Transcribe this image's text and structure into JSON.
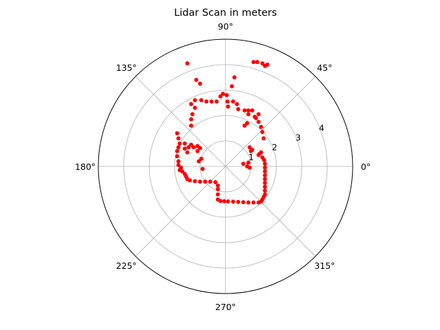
{
  "chart_data": {
    "type": "scatter",
    "projection": "polar",
    "title": "Lidar Scan in meters",
    "rlim": [
      0,
      5
    ],
    "r_ticks": [
      "1",
      "2",
      "3",
      "4"
    ],
    "theta_ticks": [
      "0°",
      "45°",
      "90°",
      "135°",
      "180°",
      "225°",
      "270°",
      "315°"
    ],
    "grid": true,
    "marker_color": "#ff0000",
    "series": [
      {
        "points_xy_m": [
          [
            1.4,
            0.55
          ],
          [
            1.35,
            0.5
          ],
          [
            1.3,
            0.45
          ],
          [
            1.05,
            0.65
          ],
          [
            0.95,
            0.75
          ],
          [
            1.0,
            0.6
          ],
          [
            1.45,
            0.35
          ],
          [
            1.52,
            0.25
          ],
          [
            1.55,
            0.1
          ],
          [
            1.55,
            -0.05
          ],
          [
            1.55,
            -0.2
          ],
          [
            1.55,
            -0.35
          ],
          [
            1.55,
            -0.5
          ],
          [
            1.55,
            -0.65
          ],
          [
            1.55,
            -0.8
          ],
          [
            1.55,
            -0.95
          ],
          [
            1.55,
            -1.1
          ],
          [
            1.5,
            -1.2
          ],
          [
            1.45,
            -1.3
          ],
          [
            1.4,
            -1.38
          ],
          [
            1.3,
            -1.42
          ],
          [
            1.1,
            -1.42
          ],
          [
            0.9,
            -1.42
          ],
          [
            0.7,
            -1.41
          ],
          [
            0.5,
            -1.4
          ],
          [
            0.3,
            -1.39
          ],
          [
            0.1,
            -1.38
          ],
          [
            -0.05,
            -1.37
          ],
          [
            -0.2,
            -1.36
          ],
          [
            -0.3,
            -1.3
          ],
          [
            -0.3,
            -1.1
          ],
          [
            -0.3,
            -0.9
          ],
          [
            -0.3,
            -0.75
          ],
          [
            -0.4,
            -0.62
          ],
          [
            -0.6,
            -0.6
          ],
          [
            -0.8,
            -0.6
          ],
          [
            -1.0,
            -0.6
          ],
          [
            -1.2,
            -0.58
          ],
          [
            -1.4,
            -0.55
          ],
          [
            -1.5,
            -0.5
          ],
          [
            -1.55,
            -0.4
          ],
          [
            -1.6,
            -0.3
          ],
          [
            -1.7,
            -0.2
          ],
          [
            -1.8,
            -0.15
          ],
          [
            -1.75,
            -0.05
          ],
          [
            -1.85,
            0.05
          ],
          [
            -1.85,
            0.2
          ],
          [
            -1.9,
            0.4
          ],
          [
            -1.9,
            0.6
          ],
          [
            -1.85,
            0.75
          ],
          [
            -1.8,
            0.9
          ],
          [
            -1.85,
            1.1
          ],
          [
            -1.9,
            1.3
          ],
          [
            -1.6,
            0.9
          ],
          [
            -1.6,
            0.7
          ],
          [
            -1.5,
            0.55
          ],
          [
            -1.45,
            0.75
          ],
          [
            -1.35,
            0.85
          ],
          [
            -0.95,
            0.3
          ],
          [
            -1.0,
            0.72
          ],
          [
            -1.1,
            0.8
          ],
          [
            -1.35,
            1.6
          ],
          [
            -1.35,
            1.85
          ],
          [
            -1.3,
            2.05
          ],
          [
            -1.2,
            2.3
          ],
          [
            -1.35,
            2.45
          ],
          [
            -1.2,
            2.6
          ],
          [
            -0.95,
            2.6
          ],
          [
            -0.75,
            2.55
          ],
          [
            -0.55,
            2.55
          ],
          [
            -0.35,
            2.55
          ],
          [
            -0.2,
            2.75
          ],
          [
            -0.1,
            2.85
          ],
          [
            0.05,
            2.8
          ],
          [
            0.08,
            2.55
          ],
          [
            0.1,
            2.35
          ],
          [
            0.3,
            2.55
          ],
          [
            0.45,
            2.45
          ],
          [
            0.5,
            2.25
          ],
          [
            0.75,
            2.2
          ],
          [
            0.9,
            2.2
          ],
          [
            0.9,
            2.05
          ],
          [
            1.05,
            2.2
          ],
          [
            1.15,
            1.95
          ],
          [
            1.3,
            1.75
          ],
          [
            1.4,
            1.55
          ],
          [
            1.45,
            1.35
          ],
          [
            1.5,
            1.1
          ],
          [
            0.75,
            1.6
          ],
          [
            0.85,
            1.7
          ],
          [
            1.3,
            2.05
          ],
          [
            1.2,
            1.9
          ],
          [
            0.35,
            3.5
          ],
          [
            0.25,
            3.15
          ],
          [
            -1.15,
            3.4
          ],
          [
            -1.0,
            3.25
          ],
          [
            -1.5,
            4.05
          ],
          [
            1.1,
            4.1
          ],
          [
            1.25,
            4.1
          ],
          [
            1.45,
            4.05
          ],
          [
            1.65,
            4.0
          ],
          [
            1.55,
            3.95
          ],
          [
            0.7,
            0.1
          ],
          [
            0.85,
            0.0
          ],
          [
            0.95,
            -0.05
          ],
          [
            0.9,
            0.15
          ],
          [
            -0.9,
            -0.1
          ],
          [
            -1.05,
            0.2
          ],
          [
            -1.1,
            0.6
          ],
          [
            -1.25,
            0.75
          ]
        ]
      }
    ]
  }
}
